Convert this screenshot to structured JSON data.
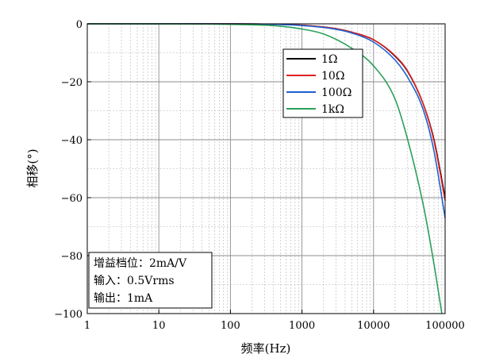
{
  "chart_data": {
    "type": "line",
    "xscale": "log",
    "xlabel": "频率(Hz)",
    "ylabel": "相移(°)",
    "xlim": [
      1,
      100000
    ],
    "ylim": [
      -100,
      0
    ],
    "xticks": [
      "1",
      "10",
      "100",
      "1000",
      "10000",
      "100000"
    ],
    "yticks": [
      "0",
      "−20",
      "−40",
      "−60",
      "−80",
      "−100"
    ],
    "grid": true,
    "legend_position": "top-right",
    "series": [
      {
        "name": "1Ω",
        "color": "#000000",
        "x": [
          1,
          100,
          1000,
          3000,
          5000,
          10000,
          20000,
          30000,
          50000,
          70000,
          100000
        ],
        "y": [
          0,
          0,
          -0.5,
          -1.7,
          -2.9,
          -5.5,
          -11.2,
          -16.5,
          -28,
          -40,
          -60
        ]
      },
      {
        "name": "10Ω",
        "color": "#e02020",
        "x": [
          1,
          100,
          1000,
          3000,
          5000,
          10000,
          20000,
          30000,
          50000,
          70000,
          100000
        ],
        "y": [
          0,
          0,
          -0.5,
          -1.7,
          -2.9,
          -5.5,
          -11,
          -16.3,
          -28,
          -40.5,
          -61
        ]
      },
      {
        "name": "100Ω",
        "color": "#1f5fd0",
        "x": [
          1,
          100,
          1000,
          3000,
          5000,
          10000,
          20000,
          30000,
          50000,
          70000,
          100000
        ],
        "y": [
          0,
          0,
          -0.6,
          -1.9,
          -3.2,
          -6.3,
          -12.5,
          -18.5,
          -30,
          -44,
          -67
        ]
      },
      {
        "name": "1kΩ",
        "color": "#2aa05a",
        "x": [
          1,
          100,
          500,
          1000,
          2000,
          5000,
          10000,
          20000,
          30000,
          50000,
          70000,
          90000
        ],
        "y": [
          0,
          -0.2,
          -0.8,
          -1.8,
          -3.5,
          -8.5,
          -14.5,
          -26,
          -40,
          -63,
          -83,
          -100
        ]
      }
    ],
    "annotation": {
      "lines": [
        "增益档位：2mA/V",
        "输入：0.5Vrms",
        "输出：1mA"
      ]
    }
  }
}
